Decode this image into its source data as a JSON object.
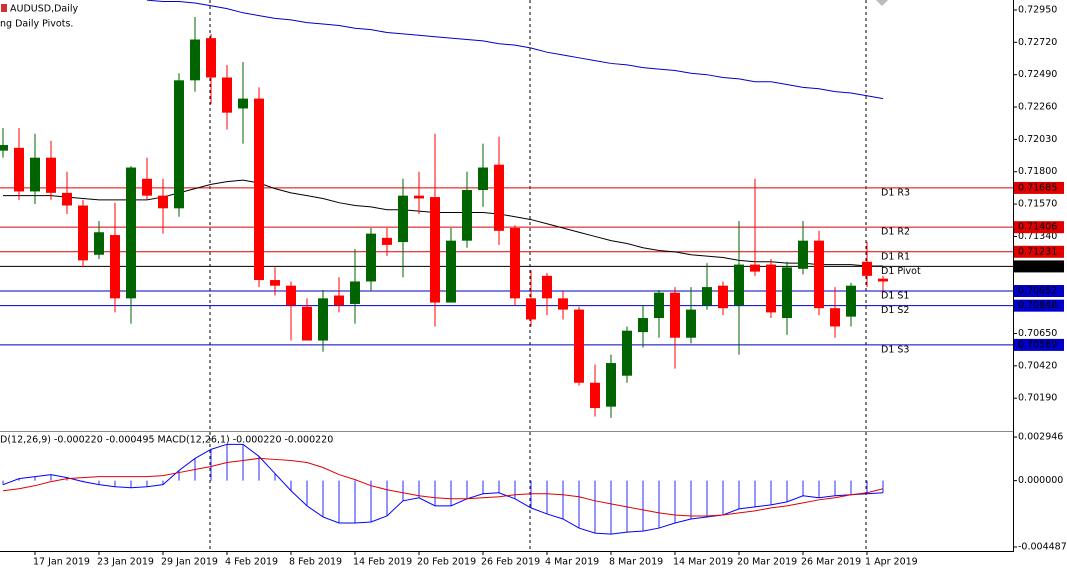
{
  "chart_data": [
    {
      "type": "candlestick",
      "title": "AUDUSD,Daily",
      "subtitle": "ng Daily Pivots.",
      "categories": [
        null,
        null,
        "17 Jan 2019",
        null,
        null,
        null,
        "23 Jan 2019",
        null,
        null,
        null,
        "29 Jan 2019",
        null,
        null,
        null,
        "4 Feb 2019",
        null,
        null,
        null,
        "8 Feb 2019",
        null,
        null,
        null,
        "14 Feb 2019",
        null,
        null,
        null,
        "20 Feb 2019",
        null,
        null,
        null,
        "26 Feb 2019",
        null,
        null,
        null,
        "4 Mar 2019",
        null,
        null,
        null,
        "8 Mar 2019",
        null,
        null,
        null,
        "14 Mar 2019",
        null,
        null,
        null,
        "20 Mar 2019",
        null,
        null,
        null,
        "26 Mar 2019",
        null,
        null,
        null,
        "1 Apr 2019",
        null
      ],
      "open": [
        0.7195,
        0.7197,
        0.7166,
        0.719,
        0.7165,
        0.7156,
        0.7121,
        0.7135,
        0.709,
        0.7175,
        0.7163,
        0.7154,
        0.7245,
        0.7275,
        0.7247,
        0.7225,
        0.7232,
        0.7103,
        0.7099,
        0.7084,
        0.706,
        0.7092,
        0.7086,
        0.7102,
        0.7133,
        0.713,
        0.7163,
        0.7162,
        0.7087,
        0.7131,
        0.7167,
        0.7185,
        0.714,
        0.709,
        0.7106,
        0.709,
        0.7082,
        0.703,
        0.7013,
        0.7035,
        0.7066,
        0.7076,
        0.7094,
        0.7062,
        0.7085,
        0.7099,
        0.7085,
        0.7114,
        0.7114,
        0.7076,
        0.7111,
        0.7131,
        0.7083,
        0.7077,
        0.7116,
        0.7104
      ],
      "high": [
        0.7211,
        0.7211,
        0.7207,
        0.7202,
        0.718,
        0.716,
        0.7145,
        0.7158,
        0.7184,
        0.719,
        0.7175,
        0.725,
        0.729,
        0.7278,
        0.7256,
        0.7258,
        0.724,
        0.7112,
        0.7102,
        0.709,
        0.7096,
        0.7105,
        0.7125,
        0.714,
        0.714,
        0.7175,
        0.718,
        0.7207,
        0.714,
        0.718,
        0.72,
        0.7205,
        0.7142,
        0.711,
        0.7108,
        0.7095,
        0.7084,
        0.7043,
        0.705,
        0.707,
        0.7085,
        0.7096,
        0.7098,
        0.7098,
        0.7115,
        0.7102,
        0.7145,
        0.7175,
        0.7118,
        0.7116,
        0.7145,
        0.7138,
        0.7098,
        0.7101,
        0.713,
        0.7106
      ],
      "low": [
        0.719,
        0.716,
        0.7157,
        0.716,
        0.715,
        0.7112,
        0.7118,
        0.708,
        0.7072,
        0.716,
        0.7136,
        0.7148,
        0.7237,
        0.7228,
        0.721,
        0.72,
        0.7098,
        0.7092,
        0.706,
        0.706,
        0.7052,
        0.708,
        0.7072,
        0.7095,
        0.712,
        0.7105,
        0.715,
        0.707,
        0.7087,
        0.7126,
        0.7155,
        0.7128,
        0.7085,
        0.707,
        0.7078,
        0.7075,
        0.7028,
        0.7006,
        0.7005,
        0.703,
        0.7055,
        0.7062,
        0.704,
        0.7058,
        0.7082,
        0.7078,
        0.705,
        0.7106,
        0.7076,
        0.7064,
        0.7107,
        0.7078,
        0.7062,
        0.707,
        0.7098,
        0.7095
      ],
      "close": [
        0.7199,
        0.7166,
        0.719,
        0.7165,
        0.7156,
        0.7117,
        0.7137,
        0.709,
        0.7183,
        0.7163,
        0.7154,
        0.7245,
        0.7274,
        0.7247,
        0.7222,
        0.7232,
        0.7103,
        0.7099,
        0.7085,
        0.706,
        0.709,
        0.7085,
        0.7102,
        0.7136,
        0.7128,
        0.7163,
        0.7161,
        0.7087,
        0.7131,
        0.7167,
        0.7183,
        0.7138,
        0.709,
        0.7075,
        0.709,
        0.7082,
        0.703,
        0.7012,
        0.7044,
        0.7067,
        0.7076,
        0.7094,
        0.7062,
        0.7082,
        0.7098,
        0.7083,
        0.7114,
        0.7109,
        0.708,
        0.7112,
        0.7131,
        0.7083,
        0.707,
        0.7099,
        0.7106,
        0.7102
      ],
      "up_color": "#006400",
      "down_color": "#ff0000",
      "lines": [
        {
          "color": "#0000c8",
          "values": [
            null,
            null,
            null,
            null,
            null,
            null,
            null,
            null,
            null,
            0.7302,
            0.7301,
            0.7301,
            0.73,
            0.7298,
            0.7296,
            0.7293,
            0.7291,
            0.7289,
            0.7288,
            0.7286,
            0.7285,
            0.7284,
            0.7282,
            0.7281,
            0.7279,
            0.7278,
            0.7277,
            0.7276,
            0.7275,
            0.7274,
            0.7273,
            0.7271,
            0.727,
            0.7268,
            0.7265,
            0.7263,
            0.7261,
            0.7259,
            0.7257,
            0.7256,
            0.7254,
            0.7253,
            0.7252,
            0.725,
            0.7249,
            0.7247,
            0.7246,
            0.7244,
            0.7244,
            0.7242,
            0.724,
            0.7239,
            0.7237,
            0.7236,
            0.7234,
            0.7232
          ]
        },
        {
          "color": "#000000",
          "values": [
            0.7163,
            0.7163,
            0.7163,
            0.7163,
            0.7162,
            0.7161,
            0.716,
            0.716,
            0.716,
            0.716,
            0.7162,
            0.7165,
            0.7168,
            0.7171,
            0.7173,
            0.7174,
            0.7172,
            0.7168,
            0.7165,
            0.7163,
            0.7161,
            0.7158,
            0.7156,
            0.7155,
            0.7153,
            0.7153,
            0.7152,
            0.7151,
            0.7151,
            0.7151,
            0.7151,
            0.715,
            0.7148,
            0.7146,
            0.7143,
            0.714,
            0.7137,
            0.7134,
            0.7131,
            0.7129,
            0.7126,
            0.7124,
            0.7123,
            0.7121,
            0.712,
            0.7119,
            0.7117,
            0.7116,
            0.7116,
            0.7115,
            0.7115,
            0.7114,
            0.7114,
            0.7114,
            0.7113,
            0.7113
          ]
        }
      ],
      "levels": [
        {
          "label": "D1 R3",
          "value": 0.71685,
          "color": "#e00000"
        },
        {
          "label": "D1 R2",
          "value": 0.71406,
          "color": "#e00000"
        },
        {
          "label": "D1 R1",
          "value": 0.71231,
          "color": "#e00000"
        },
        {
          "label": "D1 Pivot",
          "value": 0.71127,
          "color": "#000000"
        },
        {
          "label": "D1 S1",
          "value": 0.70952,
          "color": "#0000c8"
        },
        {
          "label": "D1 S2",
          "value": 0.70848,
          "color": "#0000c8"
        },
        {
          "label": "D1 S3",
          "value": 0.70569,
          "color": "#0000c8"
        }
      ],
      "ylim": [
        0.69964,
        0.73021
      ],
      "yticks": [
        {
          "value": 0.7295,
          "label": "0.72950"
        },
        {
          "value": 0.7272,
          "label": "0.72720"
        },
        {
          "value": 0.7249,
          "label": "0.72490"
        },
        {
          "value": 0.7226,
          "label": "0.72260"
        },
        {
          "value": 0.7203,
          "label": "0.72030"
        },
        {
          "value": 0.718,
          "label": "0.71800"
        },
        {
          "value": 0.7157,
          "label": "0.71570"
        },
        {
          "value": 0.7134,
          "label": "0.71340"
        },
        {
          "value": 0.7065,
          "label": "0.70650"
        },
        {
          "value": 0.7042,
          "label": "0.70420"
        },
        {
          "value": 0.7019,
          "label": "0.70190"
        }
      ]
    },
    {
      "type": "macd",
      "title": "D(12,26,9) -0.000220 -0.000495 MACD(12,26,1) -0.000220 -0.000220",
      "series": [
        {
          "color": "#0000ff",
          "values": [
            -0.000273,
            0.000137,
            0.000273,
            0.00041,
            0.000205,
            -6.8e-05,
            -0.000273,
            -0.00041,
            -0.000478,
            -0.00041,
            -0.000273,
            0.000683,
            0.001502,
            0.002116,
            0.002457,
            0.002457,
            0.001638,
            0.000478,
            -0.000683,
            -0.001707,
            -0.002457,
            -0.002867,
            -0.002867,
            -0.002799,
            -0.002389,
            -0.001365,
            -0.00116,
            -0.001707,
            -0.001707,
            -0.001229,
            -0.000887,
            -0.000819,
            -0.001229,
            -0.001843,
            -0.002253,
            -0.002594,
            -0.003208,
            -0.003549,
            -0.003618,
            -0.003481,
            -0.003413,
            -0.003208,
            -0.002867,
            -0.002594,
            -0.002457,
            -0.002321,
            -0.001911,
            -0.001775,
            -0.001638,
            -0.001434,
            -0.001024,
            -0.00116,
            -0.001024,
            -0.000956,
            -0.000887,
            -0.000819
          ]
        },
        {
          "color": "#e00000",
          "values": [
            -0.000683,
            -0.000546,
            -0.000341,
            -6.8e-05,
            0.000137,
            0.000205,
            0.000273,
            0.000273,
            0.000273,
            0.000273,
            0.000341,
            0.000546,
            0.000751,
            0.000956,
            0.001229,
            0.001365,
            0.001502,
            0.001434,
            0.001365,
            0.001229,
            0.000887,
            0.00041,
            6.8e-05,
            -0.000341,
            -0.000614,
            -0.000819,
            -0.001024,
            -0.00116,
            -0.001229,
            -0.001229,
            -0.00116,
            -0.001092,
            -0.000956,
            -0.000887,
            -0.000887,
            -0.000956,
            -0.001092,
            -0.001365,
            -0.00157,
            -0.001775,
            -0.00198,
            -0.002184,
            -0.002321,
            -0.002389,
            -0.002389,
            -0.002321,
            -0.002184,
            -0.002048,
            -0.001843,
            -0.001707,
            -0.001502,
            -0.001297,
            -0.00116,
            -0.000956,
            -0.000819,
            -0.000546
          ]
        }
      ],
      "ylim": [
        -0.00476,
        0.00329
      ],
      "yticks": [
        0.002946,
        {
          "value": 0,
          "label": "0.000000"
        },
        -0.004487
      ]
    }
  ]
}
